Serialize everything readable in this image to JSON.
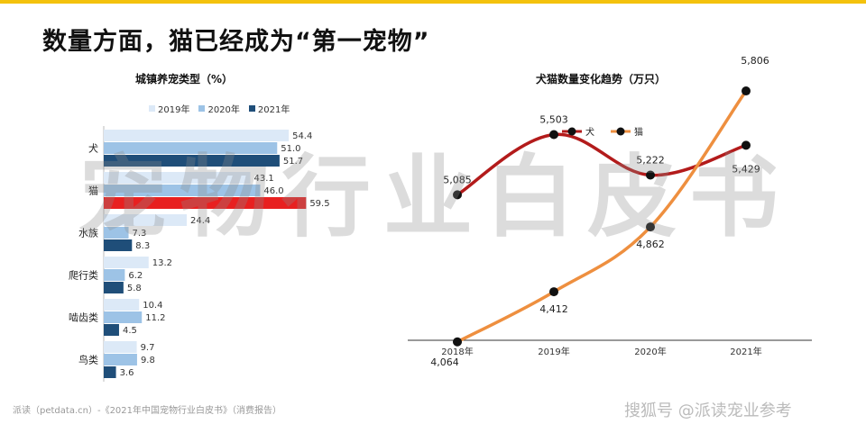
{
  "page": {
    "title": "数量方面，猫已经成为“第一宠物”",
    "footer_source": "派读（petdata.cn）-《2021年中国宠物行业白皮书》（消费报告）",
    "footer_brand": "搜狐号 @派读宠业参考",
    "watermark": "宠物行业白皮书",
    "accent_color": "#f4c20d"
  },
  "chart_data": [
    {
      "type": "bar",
      "orientation": "horizontal",
      "title": "城镇养宠类型（%）",
      "categories": [
        "犬",
        "猫",
        "水族",
        "爬行类",
        "啮齿类",
        "鸟类"
      ],
      "series": [
        {
          "name": "2019年",
          "values": [
            54.4,
            43.1,
            24.4,
            13.2,
            10.4,
            9.7
          ],
          "color": "#dce9f7"
        },
        {
          "name": "2020年",
          "values": [
            51.0,
            46.0,
            7.3,
            6.2,
            11.2,
            9.8
          ],
          "color": "#9dc3e6"
        },
        {
          "name": "2021年",
          "values": [
            51.7,
            59.5,
            8.3,
            5.8,
            4.5,
            3.6
          ],
          "color": "#1f4e79"
        }
      ],
      "highlight": {
        "category": "猫",
        "series": "2021年",
        "color": "#e82020"
      },
      "legend_position": "top",
      "xlim": [
        0,
        60
      ]
    },
    {
      "type": "line",
      "title": "犬猫数量变化趋势（万只）",
      "categories": [
        "2018年",
        "2019年",
        "2020年",
        "2021年"
      ],
      "series": [
        {
          "name": "犬",
          "values": [
            5085,
            5503,
            5222,
            5429
          ],
          "color": "#b31b1b"
        },
        {
          "name": "猫",
          "values": [
            4064,
            4412,
            4862,
            5806
          ],
          "color": "#ee8f3f"
        }
      ],
      "legend_position": "top-left",
      "ylim": [
        3500,
        6000
      ],
      "grid": false
    }
  ]
}
